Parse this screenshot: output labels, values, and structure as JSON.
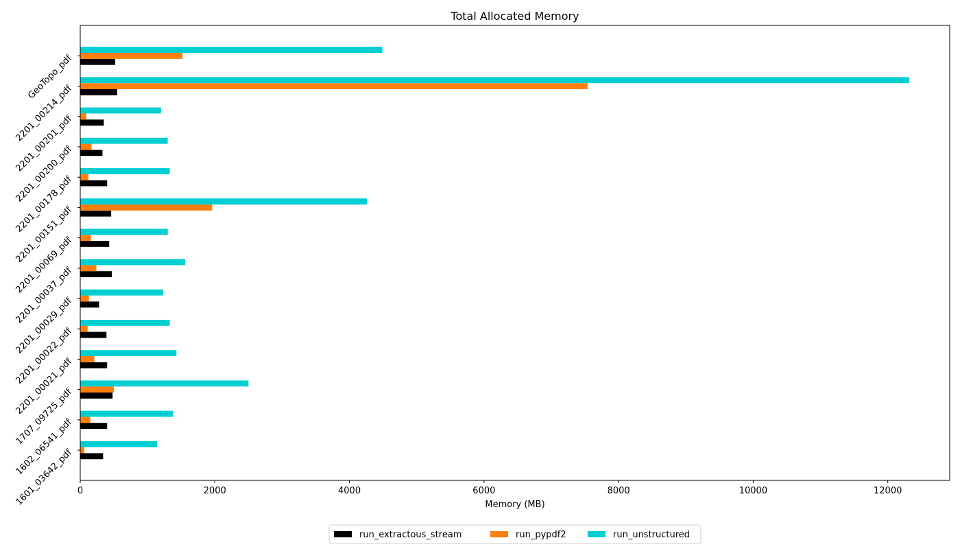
{
  "chart_data": {
    "type": "bar",
    "orientation": "horizontal",
    "title": "Total Allocated Memory",
    "xlabel": "Memory (MB)",
    "ylabel": "",
    "xlim": [
      0,
      12920
    ],
    "xticks": [
      0,
      2000,
      4000,
      6000,
      8000,
      10000,
      12000
    ],
    "grid": false,
    "legend_position": "bottom-center",
    "categories": [
      "1601_03642_pdf",
      "1602_06541_pdf",
      "1707_09725_pdf",
      "2201_00021_pdf",
      "2201_00022_pdf",
      "2201_00029_pdf",
      "2201_00037_pdf",
      "2201_00069_pdf",
      "2201_00151_pdf",
      "2201_00178_pdf",
      "2201_00200_pdf",
      "2201_00201_pdf",
      "2201_00214_pdf",
      "GeoTopo_pdf"
    ],
    "series": [
      {
        "name": "run_extractous_stream",
        "color": "#000000",
        "values": [
          340,
          400,
          480,
          400,
          390,
          280,
          470,
          430,
          460,
          400,
          330,
          350,
          550,
          520
        ]
      },
      {
        "name": "run_pypdf2",
        "color": "#ff7f0e",
        "values": [
          60,
          150,
          500,
          210,
          110,
          130,
          240,
          160,
          1960,
          120,
          170,
          90,
          7540,
          1520
        ]
      },
      {
        "name": "run_unstructured",
        "color": "#00ced1",
        "values": [
          1140,
          1380,
          2500,
          1430,
          1330,
          1230,
          1560,
          1300,
          4260,
          1330,
          1300,
          1200,
          12320,
          4490
        ]
      }
    ]
  }
}
